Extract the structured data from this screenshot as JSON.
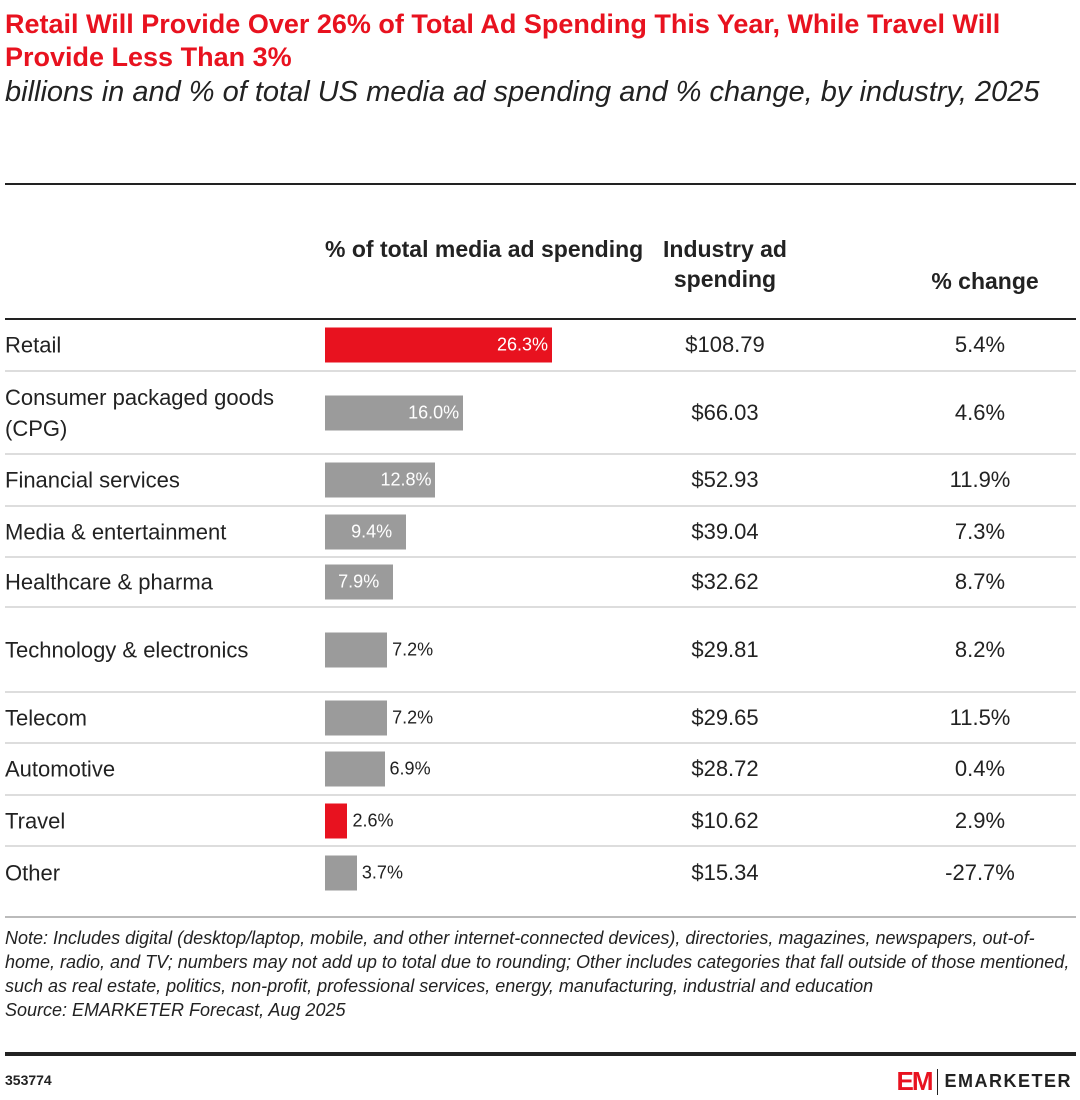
{
  "title": "Retail Will Provide Over 26% of Total Ad Spending This Year, While Travel Will Provide Less Than 3%",
  "subtitle": "billions in and % of total US media ad spending and % change, by industry, 2025",
  "chart_data": {
    "type": "table",
    "columns": [
      "% of total media ad spending",
      "Industry ad spending",
      "% change"
    ],
    "colors": {
      "highlight": "#e8121f",
      "default": "#9b9b9b"
    },
    "rows": [
      {
        "industry": "Retail",
        "share": 26.3,
        "share_label": "26.3%",
        "spending": "$108.79",
        "change": "5.4%",
        "highlight": true
      },
      {
        "industry": "Consumer packaged goods (CPG)",
        "share": 16.0,
        "share_label": "16.0%",
        "spending": "$66.03",
        "change": "4.6%",
        "highlight": false
      },
      {
        "industry": "Financial services",
        "share": 12.8,
        "share_label": "12.8%",
        "spending": "$52.93",
        "change": "11.9%",
        "highlight": false
      },
      {
        "industry": "Media & entertainment",
        "share": 9.4,
        "share_label": "9.4%",
        "spending": "$39.04",
        "change": "7.3%",
        "highlight": false
      },
      {
        "industry": "Healthcare & pharma",
        "share": 7.9,
        "share_label": "7.9%",
        "spending": "$32.62",
        "change": "8.7%",
        "highlight": false
      },
      {
        "industry": "Technology & electronics",
        "share": 7.2,
        "share_label": "7.2%",
        "spending": "$29.81",
        "change": "8.2%",
        "highlight": false
      },
      {
        "industry": "Telecom",
        "share": 7.2,
        "share_label": "7.2%",
        "spending": "$29.65",
        "change": "11.5%",
        "highlight": false
      },
      {
        "industry": "Automotive",
        "share": 6.9,
        "share_label": "6.9%",
        "spending": "$28.72",
        "change": "0.4%",
        "highlight": false
      },
      {
        "industry": "Travel",
        "share": 2.6,
        "share_label": "2.6%",
        "spending": "$10.62",
        "change": "2.9%",
        "highlight": true
      },
      {
        "industry": "Other",
        "share": 3.7,
        "share_label": "3.7%",
        "spending": "$15.34",
        "change": "-27.7%",
        "highlight": false
      }
    ]
  },
  "note": "Note: Includes digital (desktop/laptop, mobile, and other internet-connected devices), directories, magazines, newspapers, out-of-home, radio, and TV; numbers may not add up to total due to rounding; Other includes categories that fall outside of those mentioned, such as real estate, politics, non-profit, professional services, energy, manufacturing, industrial and education",
  "source": "Source: EMARKETER Forecast, Aug 2025",
  "chart_id": "353774",
  "logo": {
    "mark": "EM",
    "name": "EMARKETER"
  }
}
